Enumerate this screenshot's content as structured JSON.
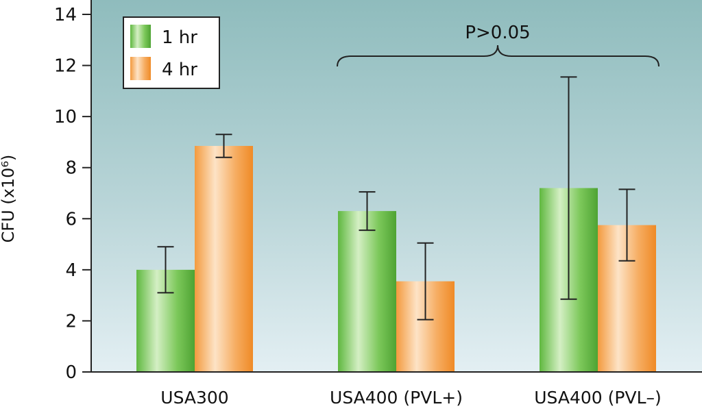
{
  "chart_data": {
    "type": "bar",
    "title": "",
    "xlabel": "",
    "ylabel": "CFU (x10⁶)",
    "ylim": [
      0,
      14
    ],
    "yticks": [
      0,
      2,
      4,
      6,
      8,
      10,
      12,
      14
    ],
    "grid": false,
    "legend_position": "top-left",
    "categories": [
      "USA300",
      "USA400 (PVL+)",
      "USA400 (PVL–)"
    ],
    "series": [
      {
        "name": "1 hr",
        "color": "#6cc24a",
        "values": [
          4.0,
          6.3,
          7.2
        ],
        "error": [
          [
            3.1,
            4.9
          ],
          [
            5.55,
            7.05
          ],
          [
            2.85,
            11.55
          ]
        ]
      },
      {
        "name": "4 hr",
        "color": "#f5a04a",
        "values": [
          8.85,
          3.55,
          5.75
        ],
        "error": [
          [
            8.4,
            9.3
          ],
          [
            2.05,
            5.05
          ],
          [
            4.35,
            7.15
          ]
        ]
      }
    ],
    "annotations": [
      {
        "text": "P>0.05",
        "spans_categories": [
          1,
          2
        ]
      }
    ]
  }
}
